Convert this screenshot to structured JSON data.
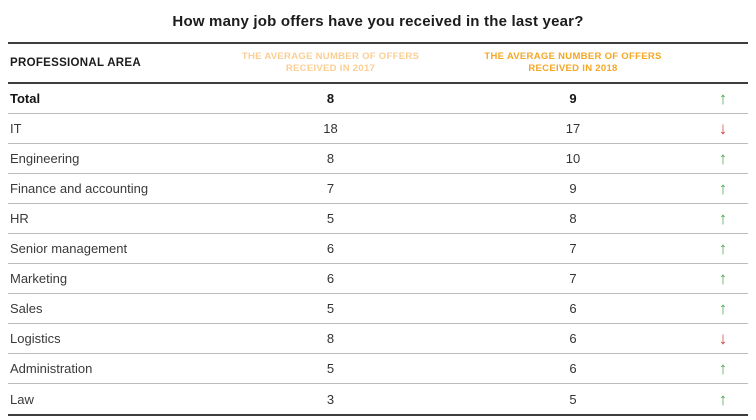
{
  "chart_data": {
    "type": "table",
    "title": "How many job offers have you received in the last year?",
    "columns": [
      "PROFESSIONAL AREA",
      "THE AVERAGE NUMBER OF OFFERS RECEIVED IN 2017",
      "THE AVERAGE NUMBER OF OFFERS RECEIVED IN 2018"
    ],
    "rows": [
      {
        "area": "Total",
        "offers_2017": 8,
        "offers_2018": 9,
        "trend": "up",
        "bold": true
      },
      {
        "area": "IT",
        "offers_2017": 18,
        "offers_2018": 17,
        "trend": "down",
        "bold": false
      },
      {
        "area": "Engineering",
        "offers_2017": 8,
        "offers_2018": 10,
        "trend": "up",
        "bold": false
      },
      {
        "area": "Finance and accounting",
        "offers_2017": 7,
        "offers_2018": 9,
        "trend": "up",
        "bold": false
      },
      {
        "area": "HR",
        "offers_2017": 5,
        "offers_2018": 8,
        "trend": "up",
        "bold": false
      },
      {
        "area": "Senior management",
        "offers_2017": 6,
        "offers_2018": 7,
        "trend": "up",
        "bold": false
      },
      {
        "area": "Marketing",
        "offers_2017": 6,
        "offers_2018": 7,
        "trend": "up",
        "bold": false
      },
      {
        "area": "Sales",
        "offers_2017": 5,
        "offers_2018": 6,
        "trend": "up",
        "bold": false
      },
      {
        "area": "Logistics",
        "offers_2017": 8,
        "offers_2018": 6,
        "trend": "down",
        "bold": false
      },
      {
        "area": "Administration",
        "offers_2017": 5,
        "offers_2018": 6,
        "trend": "up",
        "bold": false
      },
      {
        "area": "Law",
        "offers_2017": 3,
        "offers_2018": 5,
        "trend": "up",
        "bold": false
      }
    ]
  },
  "icons": {
    "up": "↑",
    "down": "↓"
  },
  "colors": {
    "header-2017": "#FBCE93",
    "header-2018": "#F5A623",
    "trend-up": "#4AA84E",
    "trend-down": "#D2453C"
  }
}
